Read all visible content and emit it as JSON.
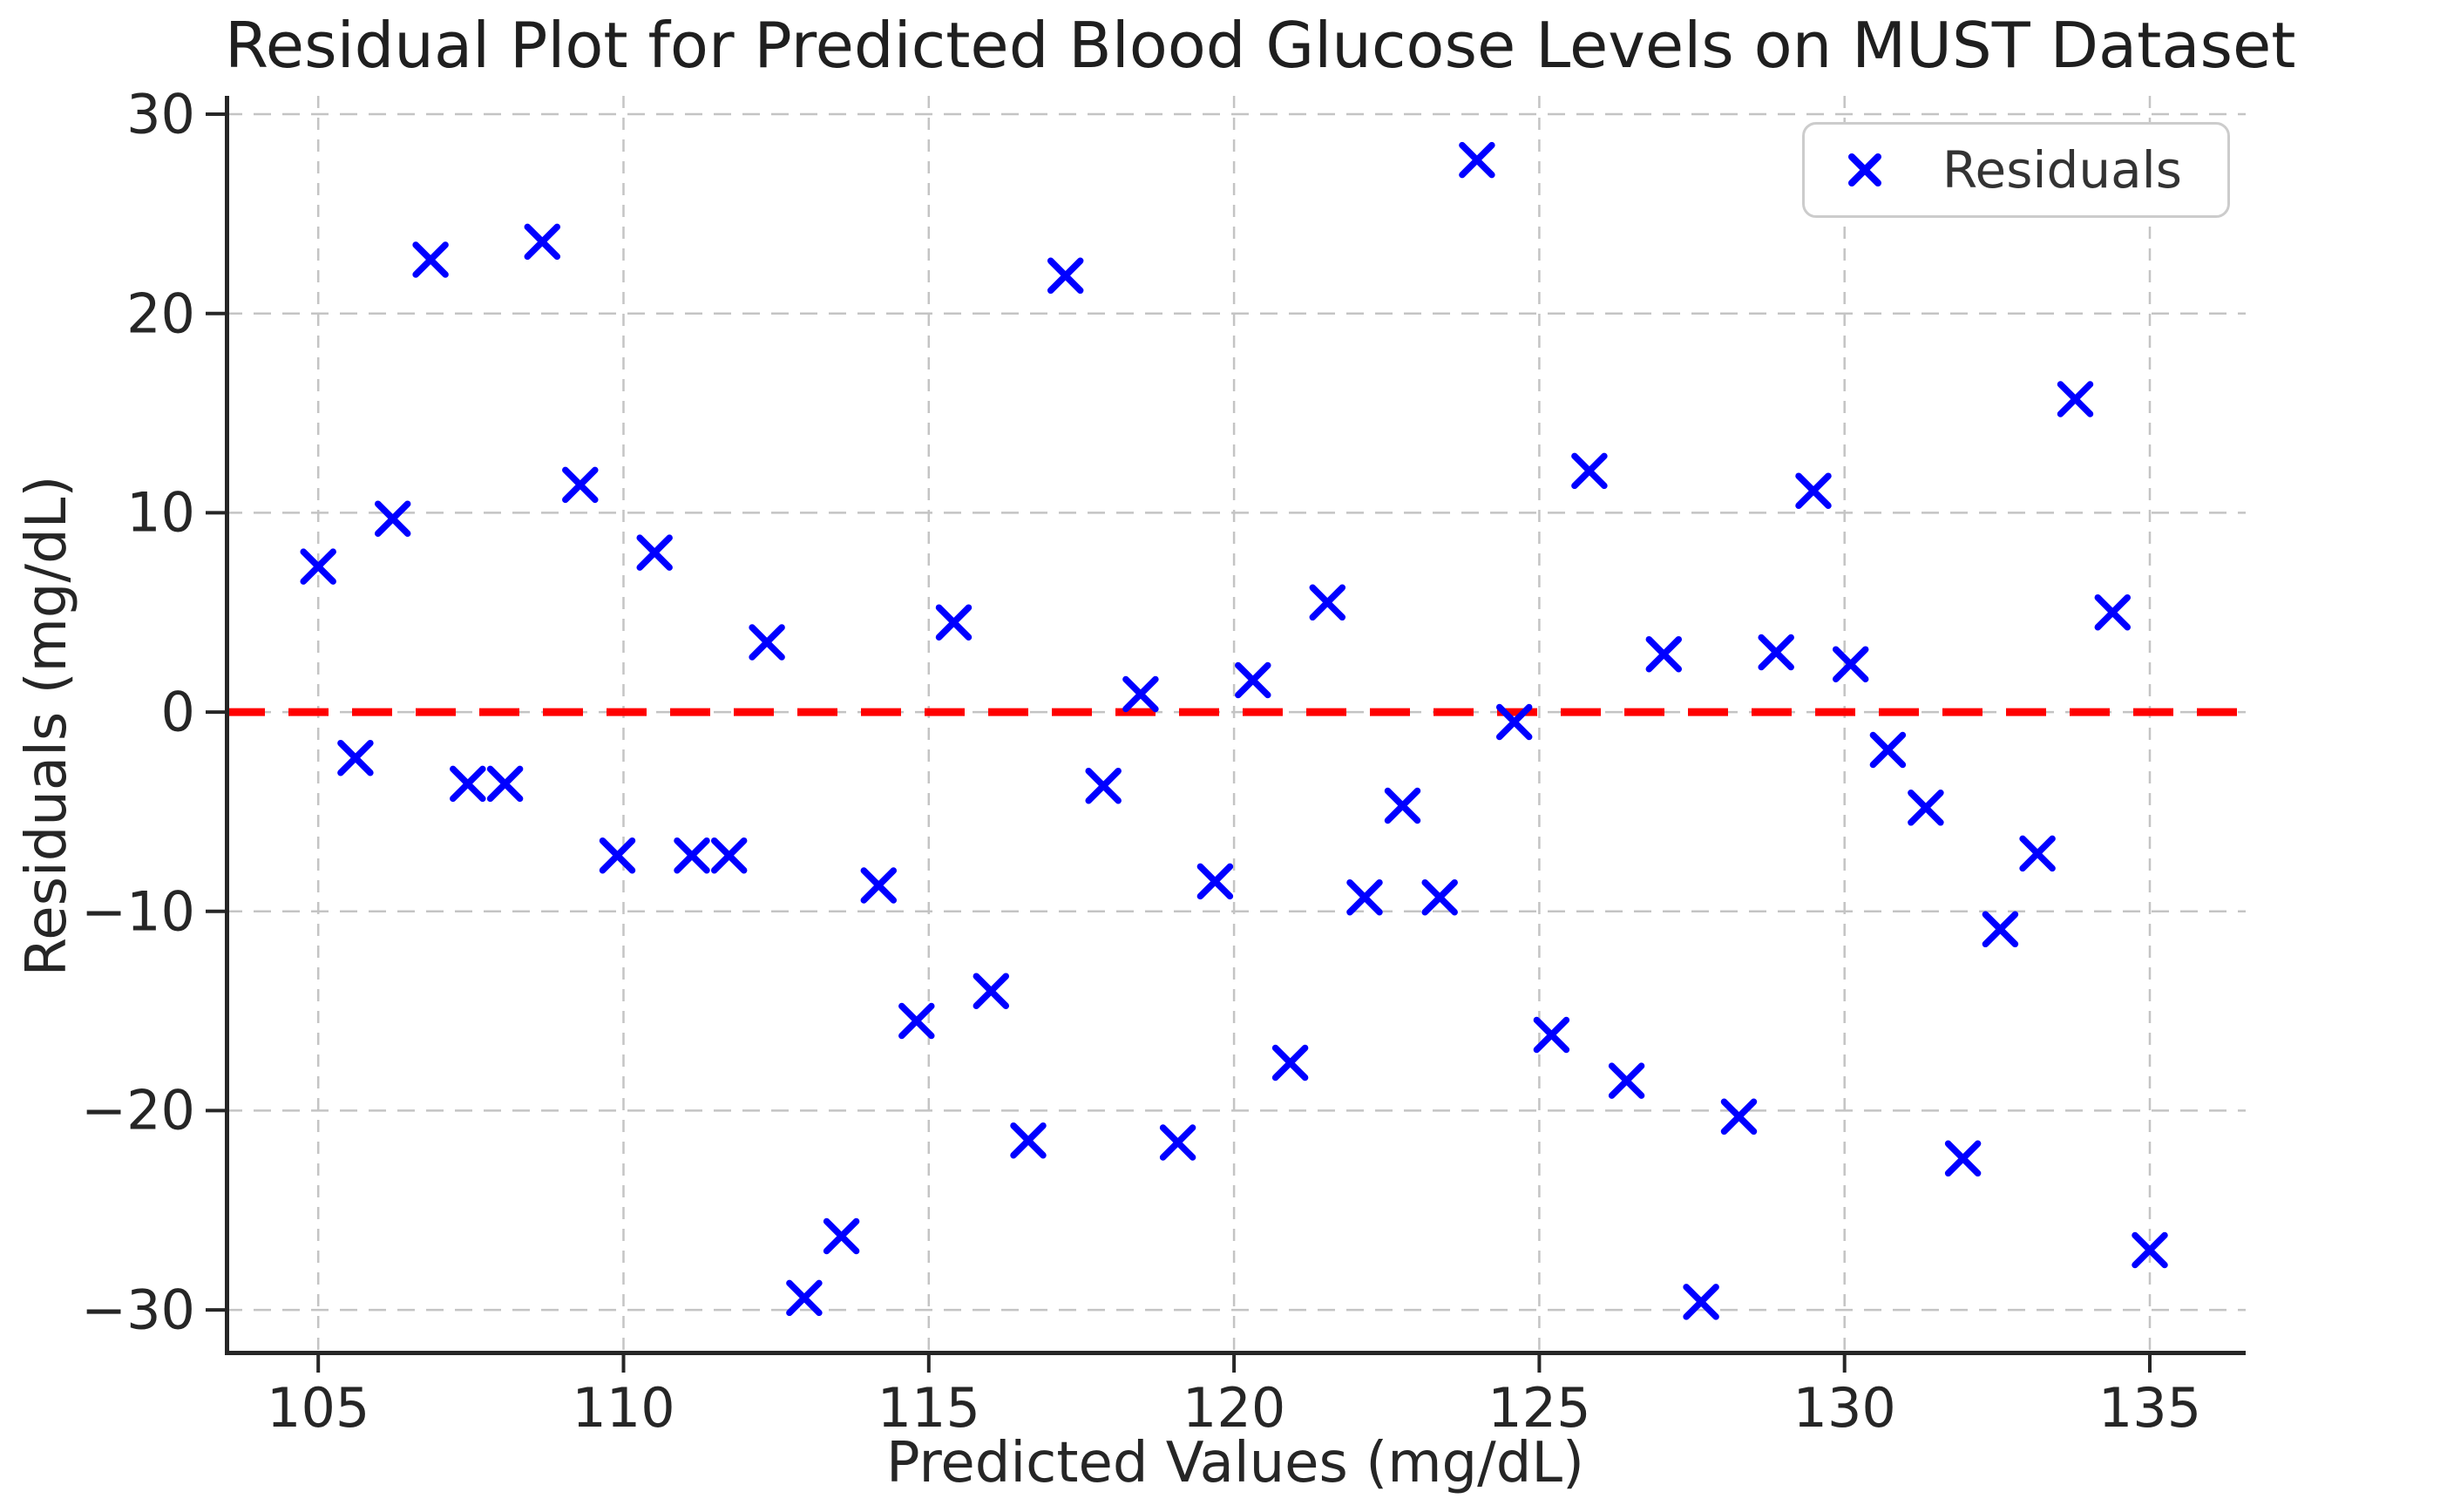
{
  "chart_data": {
    "type": "scatter",
    "title": "Residual Plot for Predicted Blood Glucose Levels on MUST Dataset",
    "xlabel": "Predicted Values (mg/dL)",
    "ylabel": "Residuals (mg/dL)",
    "xlim": [
      103.47,
      136.57
    ],
    "ylim": [
      -32.27,
      30.92
    ],
    "grid": true,
    "grid_style": "dashed",
    "xticks": {
      "values": [
        105,
        110,
        115,
        120,
        125,
        130,
        135
      ],
      "labels": [
        "105",
        "110",
        "115",
        "120",
        "125",
        "130",
        "135"
      ]
    },
    "yticks": {
      "values": [
        30,
        20,
        10,
        0,
        -10,
        -20,
        -30
      ],
      "labels": [
        "30",
        "20",
        "10",
        "0",
        "−10",
        "−20",
        "−30"
      ]
    },
    "zero_line": {
      "y": 0,
      "color": "#ff0000",
      "style": "dashed"
    },
    "legend": {
      "position": "upper-right",
      "entries": [
        {
          "label": "Residuals",
          "marker": "x",
          "color": "#0000ff"
        }
      ]
    },
    "style": {
      "marker_color": "#0000ff",
      "zero_line_color": "#ff0000",
      "grid_color": "#c4c4c4",
      "spine_color": "#262626",
      "text_color": "#1f1f1f",
      "legend_border_color": "#cccccc"
    },
    "series": [
      {
        "name": "Residuals",
        "marker": "x",
        "color": "#0000ff",
        "points": [
          [
            105.0,
            7.3
          ],
          [
            105.61,
            -2.3
          ],
          [
            106.22,
            9.7
          ],
          [
            106.84,
            22.7
          ],
          [
            107.45,
            -3.6
          ],
          [
            108.06,
            -3.6
          ],
          [
            108.67,
            23.6
          ],
          [
            109.29,
            11.4
          ],
          [
            109.9,
            -7.2
          ],
          [
            110.51,
            8.0
          ],
          [
            111.12,
            -7.2
          ],
          [
            111.73,
            -7.2
          ],
          [
            112.35,
            3.5
          ],
          [
            112.96,
            -29.4
          ],
          [
            113.57,
            -26.3
          ],
          [
            114.18,
            -8.7
          ],
          [
            114.8,
            -15.5
          ],
          [
            115.41,
            4.5
          ],
          [
            116.02,
            -14.0
          ],
          [
            116.63,
            -21.5
          ],
          [
            117.24,
            21.9
          ],
          [
            117.86,
            -3.7
          ],
          [
            118.47,
            0.9
          ],
          [
            119.08,
            -21.6
          ],
          [
            119.69,
            -8.5
          ],
          [
            120.31,
            1.6
          ],
          [
            120.92,
            -17.6
          ],
          [
            121.53,
            5.5
          ],
          [
            122.14,
            -9.3
          ],
          [
            122.76,
            -4.7
          ],
          [
            123.37,
            -9.3
          ],
          [
            123.98,
            27.7
          ],
          [
            124.59,
            -0.5
          ],
          [
            125.2,
            -16.2
          ],
          [
            125.82,
            12.1
          ],
          [
            126.43,
            -18.5
          ],
          [
            127.04,
            2.9
          ],
          [
            127.65,
            -29.6
          ],
          [
            128.27,
            -20.3
          ],
          [
            128.88,
            3.0
          ],
          [
            129.49,
            11.1
          ],
          [
            130.1,
            2.4
          ],
          [
            130.71,
            -1.9
          ],
          [
            131.33,
            -4.8
          ],
          [
            131.94,
            -22.4
          ],
          [
            132.55,
            -10.9
          ],
          [
            133.16,
            -7.1
          ],
          [
            133.78,
            15.7
          ],
          [
            134.39,
            5.0
          ],
          [
            135.0,
            -27.0
          ]
        ]
      }
    ]
  }
}
